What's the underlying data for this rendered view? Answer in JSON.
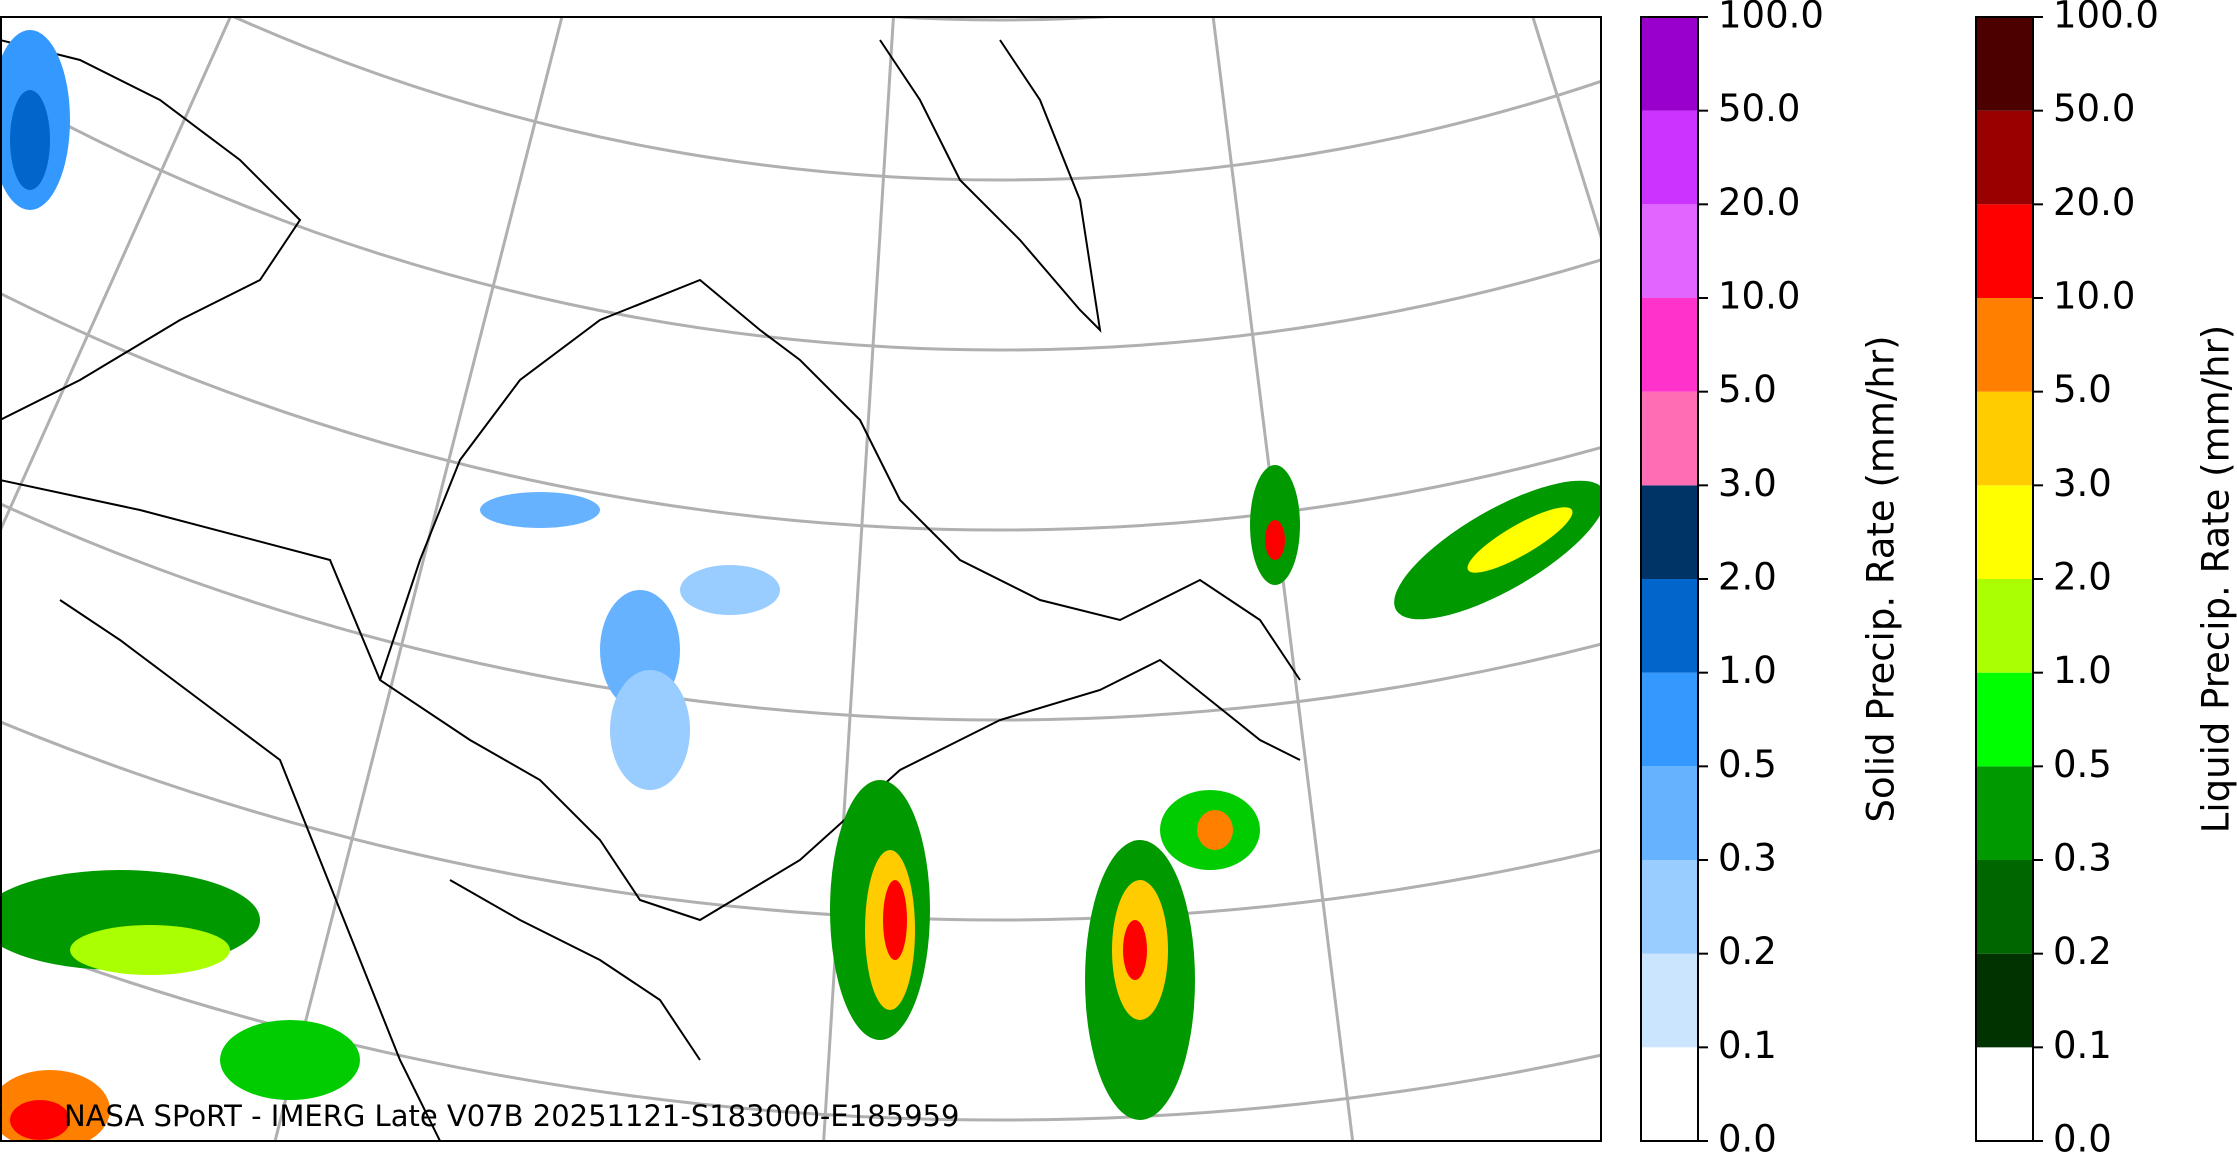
{
  "caption": "NASA SPoRT - IMERG Late V07B 20251121-S183000-E185959",
  "colorbars": [
    {
      "label": "Solid Precip. Rate (mm/hr)",
      "ticks": [
        "0.0",
        "0.1",
        "0.2",
        "0.3",
        "0.5",
        "1.0",
        "2.0",
        "3.0",
        "5.0",
        "10.0",
        "20.0",
        "50.0",
        "100.0"
      ],
      "colors": [
        "#ffffff",
        "#cce5ff",
        "#99ccff",
        "#66b2ff",
        "#3399ff",
        "#0066cc",
        "#003366",
        "#ff6eb4",
        "#ff33cc",
        "#e066ff",
        "#cc33ff",
        "#9900cc"
      ]
    },
    {
      "label": "Liquid Precip. Rate (mm/hr)",
      "ticks": [
        "0.0",
        "0.1",
        "0.2",
        "0.3",
        "0.5",
        "1.0",
        "2.0",
        "3.0",
        "5.0",
        "10.0",
        "20.0",
        "50.0",
        "100.0"
      ],
      "colors": [
        "#ffffff",
        "#003300",
        "#006600",
        "#009900",
        "#00ff00",
        "#aaff00",
        "#ffff00",
        "#ffcc00",
        "#ff8000",
        "#ff0000",
        "#990000",
        "#4d0000"
      ]
    }
  ]
}
